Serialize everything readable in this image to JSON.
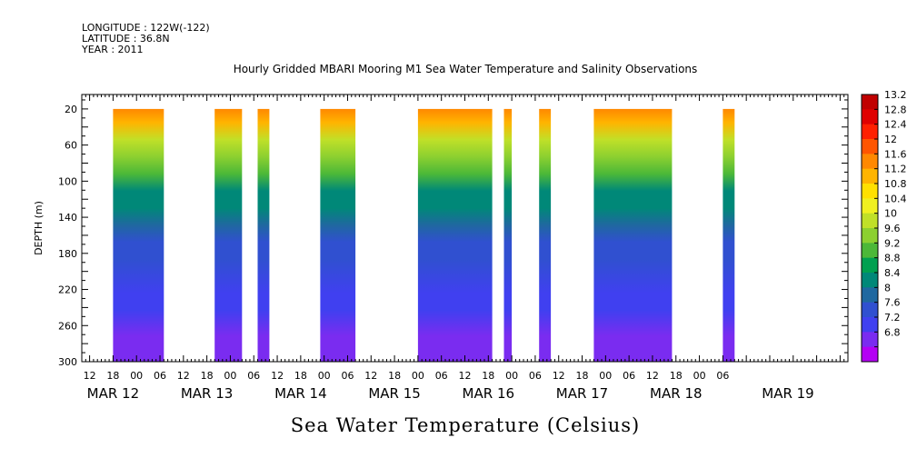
{
  "header": {
    "longitude": "LONGITUDE : 122W(-122)",
    "latitude": "LATITUDE : 36.8N",
    "year": "YEAR : 2011"
  },
  "chart_data": {
    "type": "heatmap",
    "title": "Hourly Gridded MBARI Mooring M1 Sea Water Temperature and Salinity Observations",
    "xlabel": "Sea Water Temperature (Celsius)",
    "ylabel": "DEPTH (m)",
    "y_ticks": [
      20,
      60,
      100,
      140,
      180,
      220,
      260,
      300
    ],
    "ylim": [
      300,
      4
    ],
    "x_hour_ticks": [
      "12",
      "18",
      "00",
      "06",
      "12",
      "18",
      "00",
      "06",
      "12",
      "18",
      "00",
      "06",
      "12",
      "18",
      "00",
      "06",
      "12",
      "18",
      "00",
      "06",
      "12",
      "18",
      "00",
      "06",
      "12",
      "18",
      "00",
      "06"
    ],
    "x_date_labels": [
      "MAR 12",
      "MAR 13",
      "MAR 14",
      "MAR 15",
      "MAR 16",
      "MAR 17",
      "MAR 18",
      "MAR 19"
    ],
    "colorbar_levels": [
      "13.2",
      "12.8",
      "12.4",
      "12",
      "11.6",
      "11.2",
      "10.8",
      "10.4",
      "10",
      "9.6",
      "9.2",
      "8.8",
      "8.4",
      "8",
      "7.6",
      "7.2",
      "6.8"
    ],
    "colorbar_colors": [
      "#c00000",
      "#e00000",
      "#ff2000",
      "#ff5500",
      "#ff8800",
      "#ffb400",
      "#ffe000",
      "#f0f020",
      "#c0e028",
      "#8cd030",
      "#4cb838",
      "#00a050",
      "#008878",
      "#1f68a0",
      "#3050d0",
      "#4040f0",
      "#7a2cf0",
      "#b400f4"
    ],
    "observation_periods": [
      {
        "start": "2011-03-11 18:00",
        "end": "2011-03-12 07:00"
      },
      {
        "start": "2011-03-12 20:00",
        "end": "2011-03-13 03:00"
      },
      {
        "start": "2011-03-13 07:00",
        "end": "2011-03-13 10:00"
      },
      {
        "start": "2011-03-13 23:00",
        "end": "2011-03-14 08:00"
      },
      {
        "start": "2011-03-15 00:00",
        "end": "2011-03-15 19:00"
      },
      {
        "start": "2011-03-15 22:00",
        "end": "2011-03-16 00:00"
      },
      {
        "start": "2011-03-16 07:00",
        "end": "2011-03-16 10:00"
      },
      {
        "start": "2011-03-16 21:00",
        "end": "2011-03-17 17:00"
      },
      {
        "start": "2011-03-18 06:00",
        "end": "2011-03-18 09:00"
      }
    ],
    "temperature_profile": [
      {
        "depth": 4,
        "value": 11.9
      },
      {
        "depth": 20,
        "value": 11.3
      },
      {
        "depth": 40,
        "value": 10.2
      },
      {
        "depth": 60,
        "value": 9.7
      },
      {
        "depth": 80,
        "value": 9.2
      },
      {
        "depth": 100,
        "value": 8.7
      },
      {
        "depth": 120,
        "value": 8.4
      },
      {
        "depth": 140,
        "value": 8.1
      },
      {
        "depth": 160,
        "value": 7.9
      },
      {
        "depth": 180,
        "value": 7.7
      },
      {
        "depth": 220,
        "value": 7.5
      },
      {
        "depth": 240,
        "value": 7.2
      },
      {
        "depth": 270,
        "value": 7.0
      },
      {
        "depth": 300,
        "value": 6.8
      }
    ],
    "grid": false,
    "legend": "right colorbar"
  }
}
